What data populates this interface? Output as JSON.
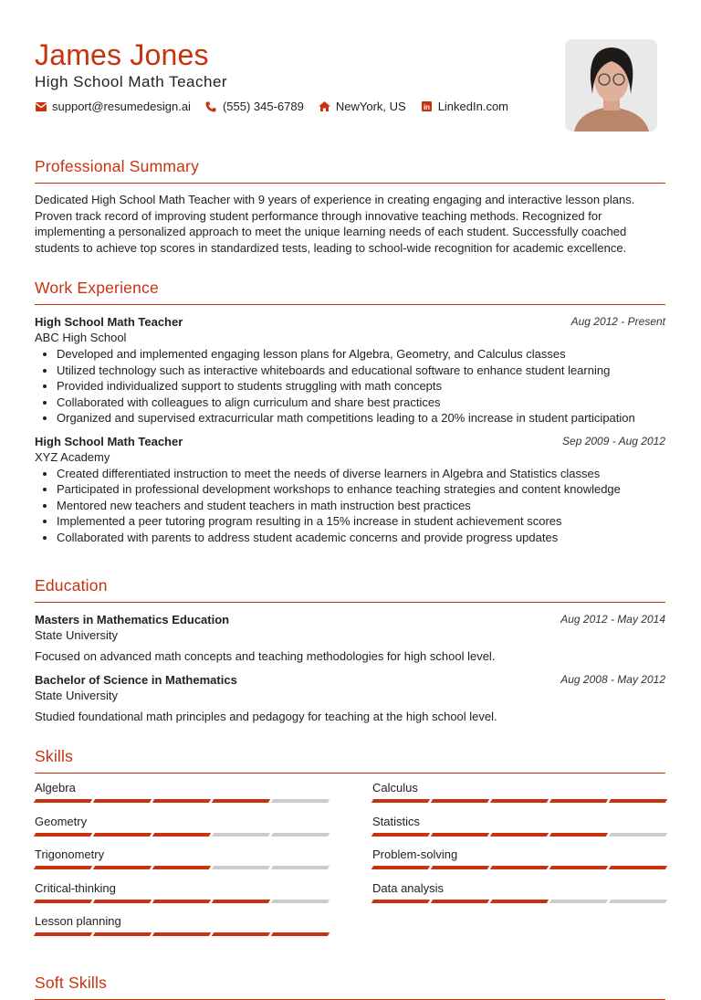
{
  "header": {
    "name": "James Jones",
    "title": "High School Math Teacher",
    "contacts": [
      {
        "icon": "envelope-icon",
        "text": "support@resumedesign.ai"
      },
      {
        "icon": "phone-icon",
        "text": "(555) 345-6789"
      },
      {
        "icon": "home-icon",
        "text": "NewYork, US"
      },
      {
        "icon": "linkedin-icon",
        "text": "LinkedIn.com"
      }
    ]
  },
  "accent": "#c8320f",
  "summary": {
    "heading": "Professional Summary",
    "text": "Dedicated High School Math Teacher with 9 years of experience in creating engaging and interactive lesson plans. Proven track record of improving student performance through innovative teaching methods. Recognized for implementing a personalized approach to meet the unique learning needs of each student. Successfully coached students to achieve top scores in standardized tests, leading to school-wide recognition for academic excellence."
  },
  "experience": {
    "heading": "Work Experience",
    "jobs": [
      {
        "title": "High School Math Teacher",
        "company": "ABC High School",
        "dates": "Aug 2012 - Present",
        "bullets": [
          "Developed and implemented engaging lesson plans for Algebra, Geometry, and Calculus classes",
          "Utilized technology such as interactive whiteboards and educational software to enhance student learning",
          "Provided individualized support to students struggling with math concepts",
          "Collaborated with colleagues to align curriculum and share best practices",
          "Organized and supervised extracurricular math competitions leading to a 20% increase in student participation"
        ]
      },
      {
        "title": "High School Math Teacher",
        "company": "XYZ Academy",
        "dates": "Sep 2009 - Aug 2012",
        "bullets": [
          "Created differentiated instruction to meet the needs of diverse learners in Algebra and Statistics classes",
          "Participated in professional development workshops to enhance teaching strategies and content knowledge",
          "Mentored new teachers and student teachers in math instruction best practices",
          "Implemented a peer tutoring program resulting in a 15% increase in student achievement scores",
          "Collaborated with parents to address student academic concerns and provide progress updates"
        ]
      }
    ]
  },
  "education": {
    "heading": "Education",
    "items": [
      {
        "degree": "Masters in Mathematics Education",
        "school": "State University",
        "dates": "Aug 2012 - May 2014",
        "desc": "Focused on advanced math concepts and teaching methodologies for high school level."
      },
      {
        "degree": "Bachelor of Science in Mathematics",
        "school": "State University",
        "dates": "Aug 2008 - May 2012",
        "desc": "Studied foundational math principles and pedagogy for teaching at the high school level."
      }
    ]
  },
  "skills": {
    "heading": "Skills",
    "max": 5,
    "items": [
      {
        "name": "Algebra",
        "level": 4
      },
      {
        "name": "Calculus",
        "level": 5
      },
      {
        "name": "Geometry",
        "level": 3
      },
      {
        "name": "Statistics",
        "level": 4
      },
      {
        "name": "Trigonometry",
        "level": 3
      },
      {
        "name": "Problem-solving",
        "level": 5
      },
      {
        "name": "Critical-thinking",
        "level": 4
      },
      {
        "name": "Data analysis",
        "level": 3
      },
      {
        "name": "Lesson planning",
        "level": 5
      }
    ]
  },
  "soft_skills": {
    "heading": "Soft Skills"
  }
}
